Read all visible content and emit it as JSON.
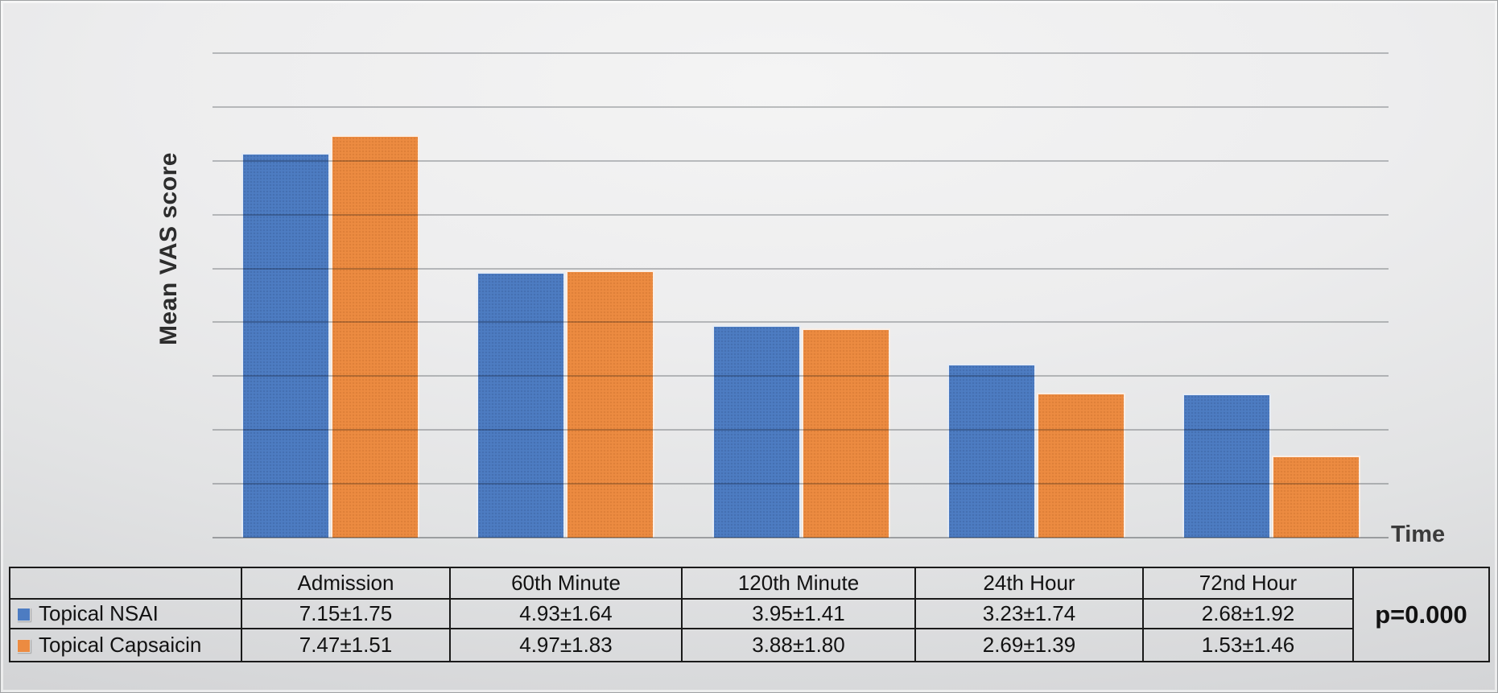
{
  "figure": {
    "y_axis_title": "Mean VAS score",
    "x_axis_title": "Time"
  },
  "colors": {
    "nsai_blue": "#4d7cc2",
    "capsaicin_orange": "#ec8b41",
    "gridline_gray": "#c2c4c6",
    "table_border_black": "#1a1a1a"
  },
  "chart_data": {
    "type": "bar",
    "title": "",
    "categories": [
      "Admission",
      "60th Minute",
      "120th Minute",
      "24th Hour",
      "72nd Hour"
    ],
    "series": [
      {
        "name": "Topical NSAI",
        "color": "#4d7cc2",
        "values": [
          7.15,
          4.93,
          3.95,
          3.23,
          2.68
        ],
        "std_dev": [
          1.75,
          1.64,
          1.41,
          1.74,
          1.92
        ],
        "value_labels": [
          "7.15±1.75",
          "4.93±1.64",
          "3.95±1.41",
          "3.23±1.74",
          "2.68±1.92"
        ]
      },
      {
        "name": "Topical Capsaicin",
        "color": "#ec8b41",
        "values": [
          7.47,
          4.97,
          3.88,
          2.69,
          1.53
        ],
        "std_dev": [
          1.51,
          1.83,
          1.8,
          1.39,
          1.46
        ],
        "value_labels": [
          "7.47±1.51",
          "4.97±1.83",
          "3.88±1.80",
          "2.69±1.39",
          "1.53±1.46"
        ]
      }
    ],
    "xlabel": "Time",
    "ylabel": "Mean VAS score",
    "ylim": [
      0,
      9
    ],
    "gridline_interval": 1,
    "y_tick_labels_visible": false,
    "grid": "horizontal gridlines only",
    "legend_position": "table below chart",
    "annotation": "p=0.000"
  },
  "table": {
    "headers": [
      "",
      "Admission",
      "60th Minute",
      "120th Minute",
      "24th Hour",
      "72nd Hour"
    ],
    "rows": [
      {
        "label": "Topical NSAI",
        "cells": [
          "7.15±1.75",
          "4.93±1.64",
          "3.95±1.41",
          "3.23±1.74",
          "2.68±1.92"
        ]
      },
      {
        "label": "Topical Capsaicin",
        "cells": [
          "7.47±1.51",
          "4.97±1.83",
          "3.88±1.80",
          "2.69±1.39",
          "1.53±1.46"
        ]
      }
    ],
    "p_value_label": "p=0.000"
  }
}
